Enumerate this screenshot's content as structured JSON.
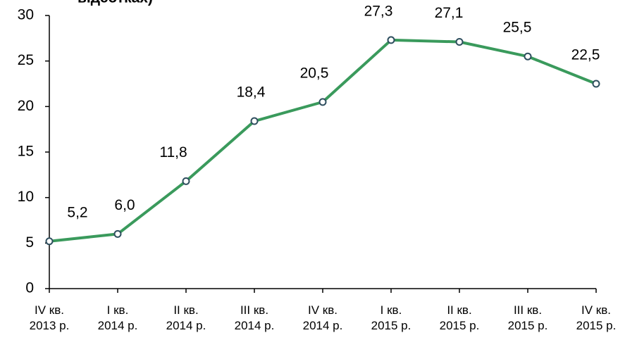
{
  "chart_data": {
    "type": "line",
    "title": "відсотках)",
    "categories": [
      [
        "IV кв.",
        "2013 р."
      ],
      [
        "I кв.",
        "2014 р."
      ],
      [
        "II кв.",
        "2014 р."
      ],
      [
        "III кв.",
        "2014 р."
      ],
      [
        "IV кв.",
        "2014 р."
      ],
      [
        "I кв.",
        "2015 р."
      ],
      [
        "II кв.",
        "2015 р."
      ],
      [
        "III кв.",
        "2015 р."
      ],
      [
        "IV кв.",
        "2015 р."
      ]
    ],
    "series": [
      {
        "color": "#3a9a5c",
        "marker_color": "#2f4f5f",
        "values": [
          5.2,
          6.0,
          11.8,
          18.4,
          20.5,
          27.3,
          27.1,
          25.5,
          22.5
        ],
        "value_labels": [
          "5,2",
          "6,0",
          "11,8",
          "18,4",
          "20,5",
          "27,3",
          "27,1",
          "25,5",
          "22,5"
        ]
      }
    ],
    "ylim": [
      0,
      30
    ],
    "yticks": [
      0,
      5,
      10,
      15,
      20,
      25,
      30
    ],
    "grid": false
  }
}
